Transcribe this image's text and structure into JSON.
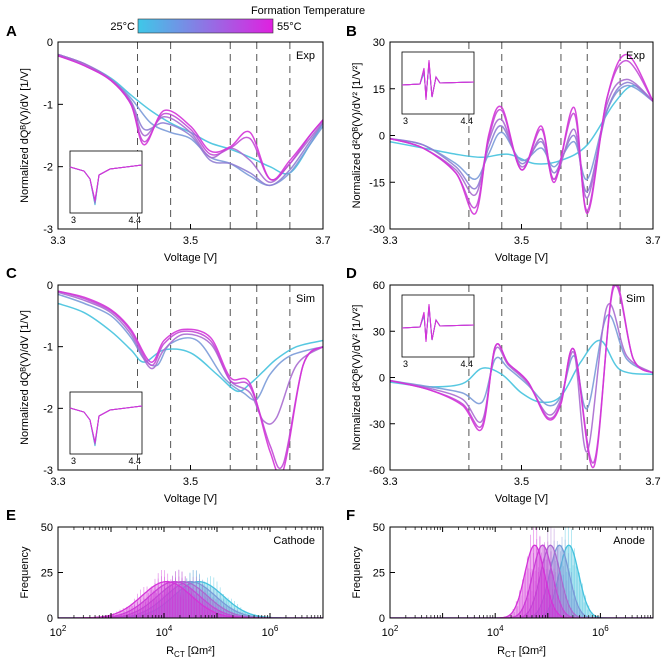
{
  "legend": {
    "title": "Formation Temperature",
    "low_label": "25°C",
    "high_label": "55°C",
    "color_low": "#3ec8e8",
    "color_high": "#e020e0"
  },
  "colors": {
    "series": [
      "#44c2de",
      "#7a9ad8",
      "#8f7ed4",
      "#a86bd0",
      "#c24ad6",
      "#d433d8"
    ],
    "axis": "#000000",
    "guide": "#555555"
  },
  "chart_data": [
    {
      "panel": "A",
      "type": "line",
      "annotation": "Exp",
      "xlabel": "Voltage [V]",
      "ylabel": "Normalized dQᴮ(V)/dV [1/V]",
      "xlim": [
        3.3,
        3.7
      ],
      "ylim": [
        -3,
        0
      ],
      "xticks": [
        "3.3",
        "3.5",
        "3.7"
      ],
      "yticks": [
        "-3",
        "-2",
        "-1",
        "0"
      ],
      "guides_x": [
        3.42,
        3.47,
        3.56,
        3.6,
        3.65
      ],
      "inset": {
        "xticks": [
          "3",
          "4.4"
        ]
      },
      "series": [
        {
          "x": [
            3.3,
            3.34,
            3.38,
            3.41,
            3.44,
            3.47,
            3.5,
            3.53,
            3.56,
            3.59,
            3.62,
            3.65,
            3.68,
            3.7
          ],
          "y": [
            -0.2,
            -0.35,
            -0.58,
            -0.85,
            -1.1,
            -1.3,
            -1.45,
            -1.62,
            -1.72,
            -1.85,
            -2.0,
            -2.1,
            -1.65,
            -1.3
          ]
        },
        {
          "x": [
            3.3,
            3.34,
            3.38,
            3.41,
            3.44,
            3.47,
            3.5,
            3.53,
            3.56,
            3.59,
            3.62,
            3.65,
            3.68,
            3.7
          ],
          "y": [
            -0.2,
            -0.35,
            -0.6,
            -0.9,
            -1.3,
            -1.45,
            -1.55,
            -1.85,
            -1.95,
            -2.15,
            -2.3,
            -2.1,
            -1.65,
            -1.35
          ]
        },
        {
          "x": [
            3.3,
            3.34,
            3.38,
            3.41,
            3.43,
            3.46,
            3.5,
            3.53,
            3.56,
            3.59,
            3.62,
            3.65,
            3.68,
            3.7
          ],
          "y": [
            -0.2,
            -0.35,
            -0.6,
            -0.95,
            -1.4,
            -1.3,
            -1.5,
            -1.9,
            -1.95,
            -2.1,
            -2.3,
            -2.05,
            -1.6,
            -1.3
          ]
        },
        {
          "x": [
            3.3,
            3.34,
            3.38,
            3.41,
            3.43,
            3.46,
            3.5,
            3.53,
            3.56,
            3.59,
            3.62,
            3.65,
            3.68,
            3.7
          ],
          "y": [
            -0.2,
            -0.35,
            -0.6,
            -0.97,
            -1.5,
            -1.2,
            -1.45,
            -1.85,
            -1.7,
            -1.9,
            -2.25,
            -1.95,
            -1.55,
            -1.28
          ]
        },
        {
          "x": [
            3.3,
            3.34,
            3.38,
            3.41,
            3.43,
            3.46,
            3.5,
            3.53,
            3.56,
            3.59,
            3.62,
            3.65,
            3.68,
            3.7
          ],
          "y": [
            -0.22,
            -0.38,
            -0.62,
            -1.0,
            -1.6,
            -1.15,
            -1.4,
            -1.8,
            -1.7,
            -1.55,
            -2.2,
            -1.95,
            -1.5,
            -1.25
          ]
        },
        {
          "x": [
            3.3,
            3.34,
            3.38,
            3.41,
            3.43,
            3.46,
            3.5,
            3.53,
            3.56,
            3.59,
            3.62,
            3.65,
            3.68,
            3.7
          ],
          "y": [
            -0.22,
            -0.38,
            -0.62,
            -1.0,
            -1.65,
            -1.1,
            -1.35,
            -1.75,
            -1.68,
            -1.45,
            -2.2,
            -1.9,
            -1.5,
            -1.25
          ]
        }
      ]
    },
    {
      "panel": "B",
      "type": "line",
      "annotation": "Exp",
      "xlabel": "Voltage [V]",
      "ylabel": "Normalized d²Qᴮ(V)/dV² [1/V²]",
      "xlim": [
        3.3,
        3.7
      ],
      "ylim": [
        -30,
        30
      ],
      "xticks": [
        "3.3",
        "3.5",
        "3.7"
      ],
      "yticks": [
        "-30",
        "-15",
        "0",
        "15",
        "30"
      ],
      "guides_x": [
        3.42,
        3.47,
        3.56,
        3.6,
        3.65
      ],
      "inset": {
        "xticks": [
          "3",
          "4.4"
        ]
      },
      "series": [
        {
          "x": [
            3.3,
            3.35,
            3.4,
            3.44,
            3.48,
            3.52,
            3.56,
            3.6,
            3.64,
            3.67,
            3.7
          ],
          "y": [
            -2,
            -4,
            -6,
            -7,
            -6,
            -9,
            -8,
            -3,
            10,
            16,
            11
          ]
        },
        {
          "x": [
            3.3,
            3.35,
            3.4,
            3.43,
            3.45,
            3.47,
            3.5,
            3.53,
            3.55,
            3.58,
            3.6,
            3.63,
            3.66,
            3.7
          ],
          "y": [
            -1,
            -3,
            -9,
            -14,
            -6,
            1,
            -8,
            -4,
            -10,
            -2,
            -14,
            8,
            16,
            11
          ]
        },
        {
          "x": [
            3.3,
            3.35,
            3.4,
            3.43,
            3.45,
            3.47,
            3.5,
            3.53,
            3.55,
            3.58,
            3.6,
            3.63,
            3.66,
            3.7
          ],
          "y": [
            -1,
            -3,
            -10,
            -17,
            -4,
            3,
            -9,
            -2,
            -12,
            0,
            -18,
            8,
            17,
            11
          ]
        },
        {
          "x": [
            3.3,
            3.35,
            3.4,
            3.43,
            3.45,
            3.47,
            3.5,
            3.53,
            3.55,
            3.58,
            3.6,
            3.63,
            3.66,
            3.7
          ],
          "y": [
            -1,
            -4,
            -11,
            -19,
            -2,
            5,
            -10,
            -1,
            -14,
            2,
            -20,
            10,
            18,
            11
          ]
        },
        {
          "x": [
            3.3,
            3.35,
            3.4,
            3.43,
            3.45,
            3.47,
            3.5,
            3.53,
            3.55,
            3.58,
            3.6,
            3.63,
            3.66,
            3.7
          ],
          "y": [
            -1,
            -4,
            -12,
            -23,
            -1,
            8,
            -11,
            2,
            -14,
            7,
            -24,
            12,
            24,
            11
          ]
        },
        {
          "x": [
            3.3,
            3.35,
            3.4,
            3.43,
            3.45,
            3.47,
            3.5,
            3.53,
            3.55,
            3.58,
            3.6,
            3.63,
            3.66,
            3.7
          ],
          "y": [
            -1,
            -4,
            -12,
            -25,
            0,
            9,
            -11,
            3,
            -15,
            9,
            -25,
            12,
            26,
            11
          ]
        }
      ]
    },
    {
      "panel": "C",
      "type": "line",
      "annotation": "Sim",
      "xlabel": "Voltage [V]",
      "ylabel": "Normalized dQᴮ(V)/dV [1/V]",
      "xlim": [
        3.3,
        3.7
      ],
      "ylim": [
        -3,
        0
      ],
      "xticks": [
        "3.3",
        "3.5",
        "3.7"
      ],
      "yticks": [
        "-3",
        "-2",
        "-1",
        "0"
      ],
      "guides_x": [
        3.42,
        3.47,
        3.56,
        3.6,
        3.65
      ],
      "inset": {
        "xticks": [
          "3",
          "4.4"
        ]
      },
      "series": [
        {
          "x": [
            3.3,
            3.34,
            3.38,
            3.41,
            3.43,
            3.46,
            3.5,
            3.54,
            3.57,
            3.59,
            3.61,
            3.63,
            3.66,
            3.7
          ],
          "y": [
            -0.3,
            -0.45,
            -0.75,
            -1.05,
            -1.25,
            -1.05,
            -1.1,
            -1.45,
            -1.72,
            -1.6,
            -1.4,
            -1.2,
            -1.0,
            -0.9
          ]
        },
        {
          "x": [
            3.3,
            3.34,
            3.38,
            3.41,
            3.43,
            3.45,
            3.47,
            3.51,
            3.55,
            3.58,
            3.6,
            3.62,
            3.65,
            3.7
          ],
          "y": [
            -0.15,
            -0.3,
            -0.5,
            -0.85,
            -1.2,
            -1.3,
            -0.95,
            -0.9,
            -1.5,
            -1.75,
            -1.85,
            -1.45,
            -1.15,
            -1.0
          ]
        },
        {
          "x": [
            3.3,
            3.34,
            3.38,
            3.41,
            3.44,
            3.46,
            3.49,
            3.53,
            3.56,
            3.59,
            3.61,
            3.63,
            3.66,
            3.7
          ],
          "y": [
            -0.12,
            -0.25,
            -0.45,
            -0.8,
            -1.35,
            -1.05,
            -0.8,
            -0.95,
            -1.55,
            -1.75,
            -2.2,
            -2.15,
            -1.3,
            -1.0
          ]
        },
        {
          "x": [
            3.3,
            3.34,
            3.38,
            3.41,
            3.44,
            3.46,
            3.49,
            3.53,
            3.56,
            3.59,
            3.62,
            3.64,
            3.67,
            3.7
          ],
          "y": [
            -0.1,
            -0.22,
            -0.42,
            -0.75,
            -1.3,
            -0.95,
            -0.75,
            -0.9,
            -1.55,
            -1.65,
            -2.6,
            -2.9,
            -1.3,
            -1.0
          ]
        },
        {
          "x": [
            3.3,
            3.34,
            3.38,
            3.41,
            3.44,
            3.46,
            3.49,
            3.53,
            3.56,
            3.59,
            3.62,
            3.64,
            3.67,
            3.7
          ],
          "y": [
            -0.1,
            -0.2,
            -0.4,
            -0.72,
            -1.25,
            -0.9,
            -0.72,
            -0.85,
            -1.5,
            -1.6,
            -2.7,
            -3.0,
            -1.3,
            -1.0
          ]
        }
      ]
    },
    {
      "panel": "D",
      "type": "line",
      "annotation": "Sim",
      "xlabel": "Voltage [V]",
      "ylabel": "Normalized d²Qᴮ(V)/dV² [1/V²]",
      "xlim": [
        3.3,
        3.7
      ],
      "ylim": [
        -60,
        60
      ],
      "xticks": [
        "3.3",
        "3.5",
        "3.7"
      ],
      "yticks": [
        "-60",
        "-30",
        "0",
        "30",
        "60"
      ],
      "guides_x": [
        3.42,
        3.47,
        3.56,
        3.6,
        3.65
      ],
      "inset": {
        "xticks": [
          "3",
          "4.4"
        ]
      },
      "series": [
        {
          "x": [
            3.3,
            3.36,
            3.41,
            3.44,
            3.47,
            3.5,
            3.53,
            3.56,
            3.59,
            3.62,
            3.65,
            3.7
          ],
          "y": [
            -3,
            -6,
            -4,
            6,
            2,
            -10,
            -16,
            -12,
            10,
            24,
            5,
            2
          ]
        },
        {
          "x": [
            3.3,
            3.36,
            3.41,
            3.44,
            3.46,
            3.48,
            3.51,
            3.54,
            3.56,
            3.58,
            3.6,
            3.63,
            3.66,
            3.7
          ],
          "y": [
            -2,
            -6,
            -10,
            -16,
            12,
            6,
            -5,
            -18,
            -12,
            14,
            -20,
            40,
            12,
            3
          ]
        },
        {
          "x": [
            3.3,
            3.36,
            3.41,
            3.44,
            3.46,
            3.48,
            3.51,
            3.54,
            3.56,
            3.58,
            3.6,
            3.63,
            3.66,
            3.7
          ],
          "y": [
            -2,
            -7,
            -14,
            -28,
            18,
            8,
            -4,
            -24,
            -14,
            16,
            -48,
            46,
            14,
            3
          ]
        },
        {
          "x": [
            3.3,
            3.36,
            3.41,
            3.44,
            3.46,
            3.48,
            3.51,
            3.54,
            3.56,
            3.58,
            3.61,
            3.64,
            3.67,
            3.7
          ],
          "y": [
            -2,
            -8,
            -17,
            -31,
            20,
            9,
            -3,
            -26,
            -16,
            18,
            -55,
            58,
            12,
            3
          ]
        },
        {
          "x": [
            3.3,
            3.36,
            3.41,
            3.44,
            3.46,
            3.48,
            3.51,
            3.54,
            3.56,
            3.58,
            3.61,
            3.64,
            3.67,
            3.7
          ],
          "y": [
            -2,
            -8,
            -18,
            -33,
            20,
            9,
            -3,
            -27,
            -17,
            18,
            -58,
            60,
            12,
            3
          ]
        }
      ]
    },
    {
      "panel": "E",
      "type": "area",
      "annotation": "Cathode",
      "xlabel": "Rст [Ωm²]",
      "xlabel_main": "R",
      "xlabel_sub": "CT",
      "xlabel_unit": "[Ωm²]",
      "ylabel": "Frequency",
      "xscale": "log",
      "xlim_log10": [
        2,
        7
      ],
      "ylim": [
        0,
        50
      ],
      "xticks_log10": [
        2,
        4,
        6
      ],
      "yticks": [
        "0",
        "25",
        "50"
      ],
      "series": [
        {
          "center_log10": 4.65,
          "width_log10": 0.75,
          "peak": 20
        },
        {
          "center_log10": 4.5,
          "width_log10": 0.75,
          "peak": 20
        },
        {
          "center_log10": 4.35,
          "width_log10": 0.75,
          "peak": 20
        },
        {
          "center_log10": 4.2,
          "width_log10": 0.75,
          "peak": 20
        },
        {
          "center_log10": 4.05,
          "width_log10": 0.75,
          "peak": 20
        }
      ]
    },
    {
      "panel": "F",
      "type": "area",
      "annotation": "Anode",
      "xlabel": "Rст [Ωm²]",
      "xlabel_main": "R",
      "xlabel_sub": "CT",
      "xlabel_unit": "[Ωm²]",
      "ylabel": "Frequency",
      "xscale": "log",
      "xlim_log10": [
        2,
        7
      ],
      "ylim": [
        0,
        50
      ],
      "xticks_log10": [
        2,
        4,
        6
      ],
      "yticks": [
        "0",
        "25",
        "50"
      ],
      "series": [
        {
          "center_log10": 5.4,
          "width_log10": 0.3,
          "peak": 40
        },
        {
          "center_log10": 5.22,
          "width_log10": 0.3,
          "peak": 40
        },
        {
          "center_log10": 5.05,
          "width_log10": 0.3,
          "peak": 40
        },
        {
          "center_log10": 4.9,
          "width_log10": 0.3,
          "peak": 40
        },
        {
          "center_log10": 4.75,
          "width_log10": 0.3,
          "peak": 40
        }
      ]
    }
  ]
}
